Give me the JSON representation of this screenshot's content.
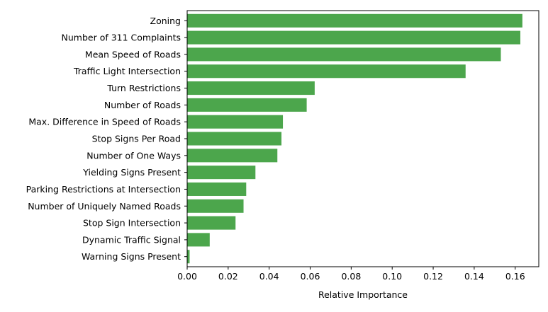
{
  "chart_data": {
    "type": "bar",
    "orientation": "horizontal",
    "categories": [
      "Zoning",
      "Number of 311 Complaints",
      "Mean Speed of Roads",
      "Traffic Light Intersection",
      "Turn Restrictions",
      "Number of Roads",
      "Max. Difference in Speed of Roads",
      "Stop Signs Per Road",
      "Number of One Ways",
      "Yielding Signs Present",
      "Parking Restrictions at Intersection",
      "Number of Uniquely Named Roads",
      "Stop Sign Intersection",
      "Dynamic Traffic Signal",
      "Warning Signs Present"
    ],
    "values": [
      0.1635,
      0.1625,
      0.153,
      0.1358,
      0.0622,
      0.0583,
      0.0467,
      0.046,
      0.044,
      0.0333,
      0.0288,
      0.0275,
      0.0236,
      0.011,
      0.0012
    ],
    "xlabel": "Relative Importance",
    "ylabel": "",
    "title": "",
    "xlim": [
      0,
      0.1715
    ],
    "xticks": [
      0.0,
      0.02,
      0.04,
      0.06,
      0.08,
      0.1,
      0.12,
      0.14,
      0.16
    ],
    "xtick_labels": [
      "0.00",
      "0.02",
      "0.04",
      "0.06",
      "0.08",
      "0.10",
      "0.12",
      "0.14",
      "0.16"
    ],
    "bar_color": "#4ca64c",
    "grid": false,
    "legend": "none"
  }
}
